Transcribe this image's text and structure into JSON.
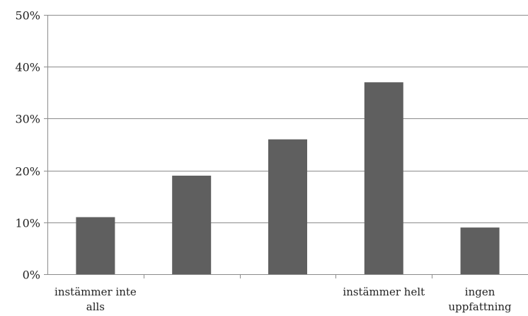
{
  "chart_data": {
    "type": "bar",
    "title": "",
    "xlabel": "",
    "ylabel": "",
    "categories": [
      [
        "instämmer inte",
        "alls"
      ],
      [
        ""
      ],
      [
        ""
      ],
      [
        "instämmer helt"
      ],
      [
        "ingen",
        "uppfattning"
      ]
    ],
    "values": [
      11,
      19,
      26,
      37,
      9
    ],
    "ylim": [
      0,
      50
    ],
    "yticks": [
      "0%",
      "10%",
      "20%",
      "30%",
      "40%",
      "50%"
    ],
    "ytick_values": [
      0,
      10,
      20,
      30,
      40,
      50
    ],
    "grid": true,
    "legend": "none",
    "colors": {
      "bar": "#5f5f5f",
      "grid": "#8c8c8c",
      "axis": "#8c8c8c"
    }
  }
}
